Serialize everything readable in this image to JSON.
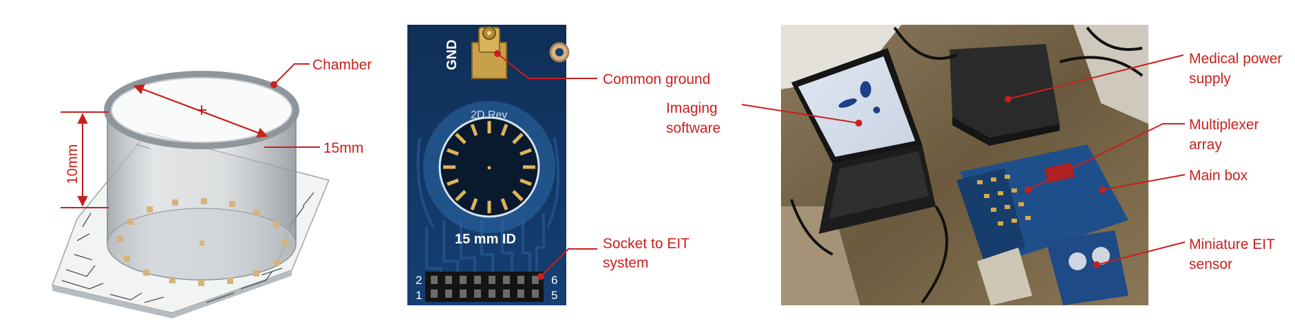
{
  "panel_a": {
    "diameter_label": "15mm",
    "height_label": "10mm",
    "chamber_label": "Chamber"
  },
  "panel_b": {
    "gnd_text": "GND",
    "board_text": "2D Rev",
    "id_text": "15 mm ID",
    "header_pins": [
      "2",
      "1",
      "6",
      "5"
    ],
    "common_ground_label": "Common ground",
    "socket_label_line1": "Socket to EIT",
    "socket_label_line2": "system"
  },
  "panel_c": {
    "imaging_line1": "Imaging",
    "imaging_line2": "software",
    "power_line1": "Medical power",
    "power_line2": "supply",
    "mux_line1": "Multiplexer",
    "mux_line2": "array",
    "mainbox_label": "Main box",
    "sensor_line1": "Miniature EIT",
    "sensor_line2": "sensor"
  },
  "colors": {
    "annotation_red": "#c8201d",
    "pcb_blue": "#123a6b",
    "photo_bg": "#6b5a3e"
  }
}
